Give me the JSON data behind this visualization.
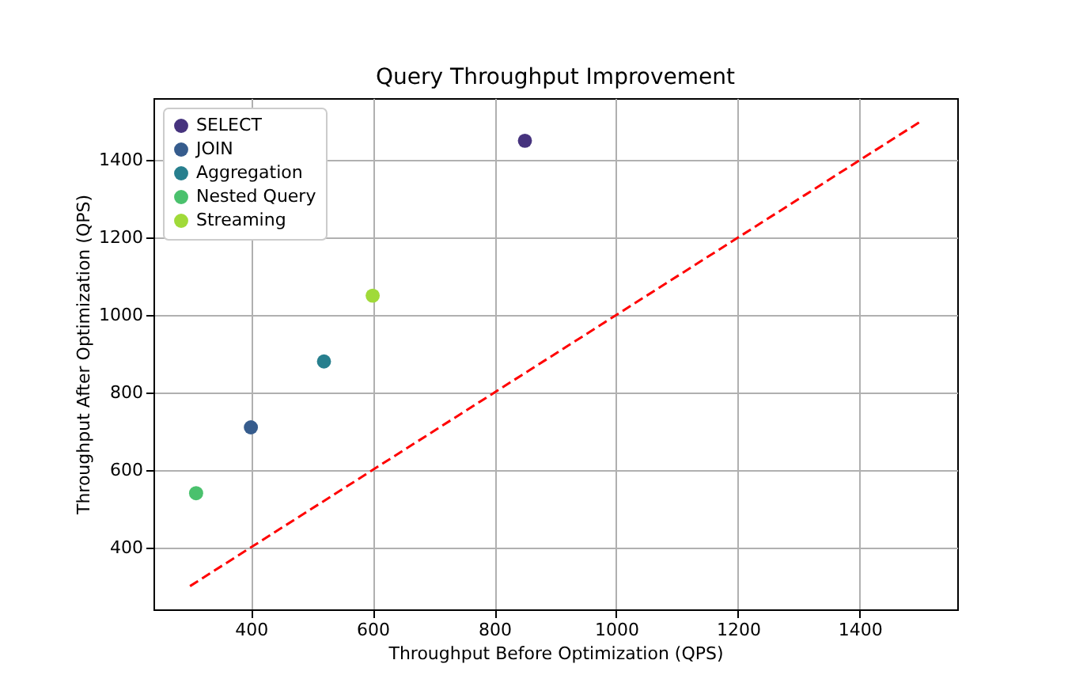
{
  "chart_data": {
    "type": "scatter",
    "title": "Query Throughput Improvement",
    "xlabel": "Throughput Before Optimization (QPS)",
    "ylabel": "Throughput After Optimization (QPS)",
    "xlim": [
      240,
      1560
    ],
    "ylim": [
      240,
      1560
    ],
    "xticks": [
      400,
      600,
      800,
      1000,
      1200,
      1400
    ],
    "yticks": [
      400,
      600,
      800,
      1000,
      1200,
      1400
    ],
    "grid": true,
    "legend": "top left",
    "series": [
      {
        "name": "SELECT",
        "color": "#46337e",
        "marker": "circle",
        "x": [
          850
        ],
        "values": [
          1450
        ]
      },
      {
        "name": "JOIN",
        "color": "#365c8d",
        "marker": "circle",
        "x": [
          400
        ],
        "values": [
          710
        ]
      },
      {
        "name": "Aggregation",
        "color": "#277f8e",
        "marker": "circle",
        "x": [
          520
        ],
        "values": [
          880
        ]
      },
      {
        "name": "Nested Query",
        "color": "#4ac16d",
        "marker": "circle",
        "x": [
          310
        ],
        "values": [
          540
        ]
      },
      {
        "name": "Streaming",
        "color": "#a0da39",
        "marker": "circle",
        "x": [
          600
        ],
        "values": [
          1050
        ]
      },
      {
        "type": "line",
        "color": "#ff0000",
        "line_style": "dashed",
        "x": [
          300,
          1500
        ],
        "values": [
          300,
          1500
        ]
      }
    ]
  }
}
